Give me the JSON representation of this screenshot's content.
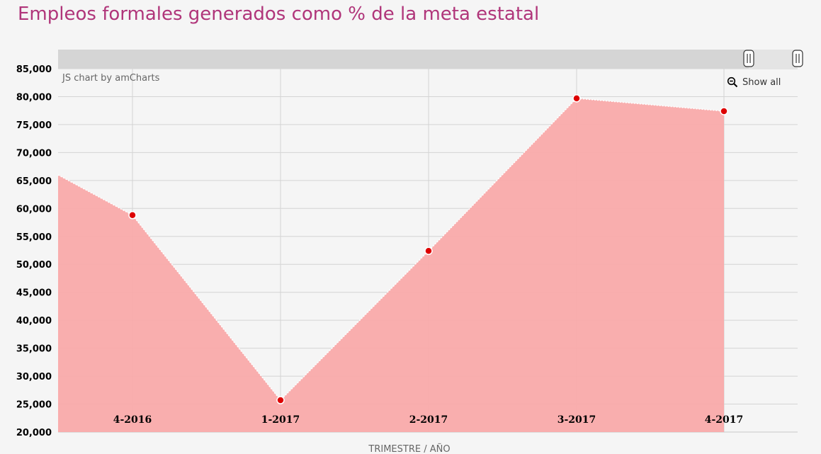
{
  "header": {
    "title": "Empleos formales generados como % de la meta estatal"
  },
  "credit": "JS chart by amCharts",
  "controls": {
    "show_all_label": "Show all"
  },
  "chart_data": {
    "type": "area",
    "title": "Empleos formales generados como % de la meta estatal",
    "xlabel": "TRIMESTRE / AÑO",
    "ylabel": "",
    "categories": [
      "4-2016",
      "1-2017",
      "2-2017",
      "3-2017",
      "4-2017"
    ],
    "series": [
      {
        "values": [
          58800,
          25700,
          52400,
          79700,
          77400
        ],
        "color": "#f9aaaa",
        "bullet_color": "#dd0000"
      }
    ],
    "leading_value": 66000,
    "ylim": [
      20000,
      85000
    ],
    "yticks": [
      20000,
      25000,
      30000,
      35000,
      40000,
      45000,
      50000,
      55000,
      60000,
      65000,
      70000,
      75000,
      80000,
      85000
    ],
    "ytick_labels": [
      "20,000",
      "25,000",
      "30,000",
      "35,000",
      "40,000",
      "45,000",
      "50,000",
      "55,000",
      "60,000",
      "65,000",
      "70,000",
      "75,000",
      "80,000",
      "85,000"
    ],
    "grid": true,
    "scrollbar": true
  }
}
